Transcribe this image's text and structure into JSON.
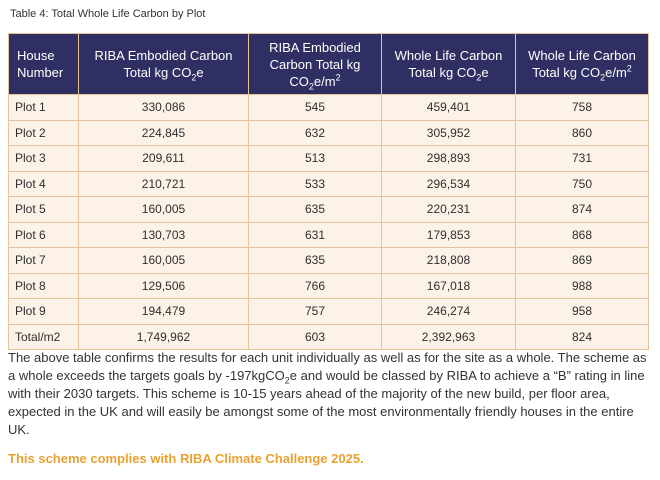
{
  "caption": "Table 4:  Total Whole Life Carbon by Plot",
  "table": {
    "headers": [
      {
        "line1": "House",
        "line2": "Number",
        "unit_pre": "",
        "unit_sub": "",
        "unit_mid": "",
        "unit_sup": ""
      },
      {
        "line1": "RIBA Embodied Carbon",
        "line2": "",
        "unit_pre": "Total kg CO",
        "unit_sub": "2",
        "unit_mid": "e",
        "unit_sup": ""
      },
      {
        "line1": "RIBA Embodied",
        "line2": "Carbon Total kg",
        "unit_pre": "CO",
        "unit_sub": "2",
        "unit_mid": "e/m",
        "unit_sup": "2"
      },
      {
        "line1": "Whole Life Carbon",
        "line2": "",
        "unit_pre": "Total kg CO",
        "unit_sub": "2",
        "unit_mid": "e",
        "unit_sup": ""
      },
      {
        "line1": "Whole Life Carbon",
        "line2": "",
        "unit_pre": "Total kg CO",
        "unit_sub": "2",
        "unit_mid": "e/m",
        "unit_sup": "2"
      }
    ],
    "rows": [
      [
        "Plot 1",
        "330,086",
        "545",
        "459,401",
        "758"
      ],
      [
        "Plot 2",
        "224,845",
        "632",
        "305,952",
        "860"
      ],
      [
        "Plot 3",
        "209,611",
        "513",
        "298,893",
        "731"
      ],
      [
        "Plot 4",
        "210,721",
        "533",
        "296,534",
        "750"
      ],
      [
        "Plot 5",
        "160,005",
        "635",
        "220,231",
        "874"
      ],
      [
        "Plot 6",
        "130,703",
        "631",
        "179,853",
        "868"
      ],
      [
        "Plot 7",
        "160,005",
        "635",
        "218,808",
        "869"
      ],
      [
        "Plot 8",
        "129,506",
        "766",
        "167,018",
        "988"
      ],
      [
        "Plot 9",
        "194,479",
        "757",
        "246,274",
        "958"
      ],
      [
        "Total/m2",
        "1,749,962",
        "603",
        "2,392,963",
        "824"
      ]
    ]
  },
  "paragraph": {
    "part1": " The above table confirms the results for each unit individually as well as for the site as a whole.  The scheme as a whole exceeds the targets goals by -197kgCO",
    "sub": "2",
    "part2": "e and would be classed by RIBA to achieve a “B” rating in line with their 2030 targets.  This scheme is 10-15 years ahead of the majority of the new build, per floor area, expected in the UK and will easily be amongst some of the most environmentally friendly houses in the entire UK."
  },
  "note": "This scheme complies with RIBA Climate Challenge 2025.",
  "colors": {
    "header_bg": "#2f2f63",
    "row_bg": "#fcf2e8",
    "border": "#e4c59b",
    "note": "#e8a232"
  }
}
